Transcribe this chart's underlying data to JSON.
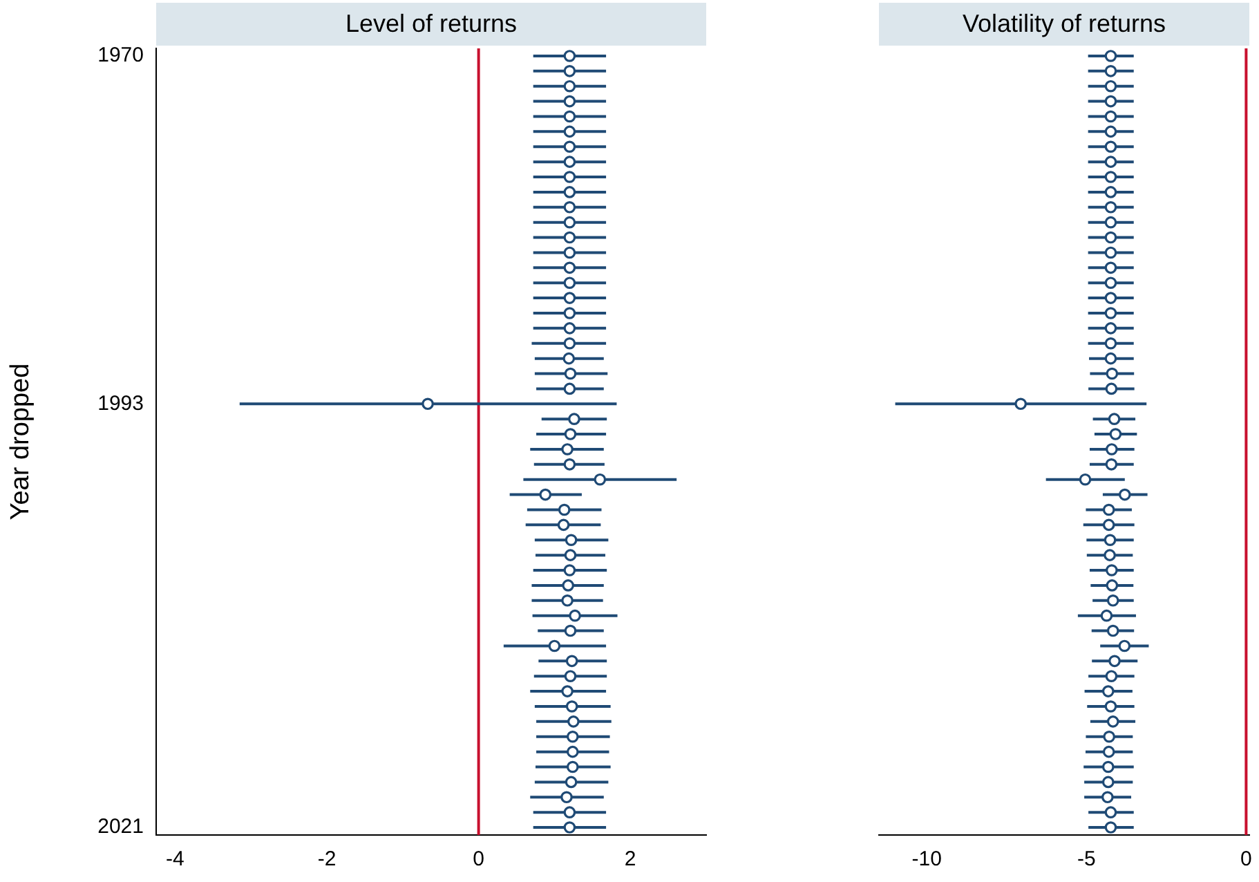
{
  "chart_data": [
    {
      "type": "scatter",
      "title": "Level of returns",
      "ylabel": "Year dropped",
      "color": "#1f4a75",
      "marker": "circle",
      "grid": false,
      "xlim": [
        -4.25,
        3
      ],
      "xticks": [
        -4,
        -2,
        0,
        2
      ],
      "ylim": [
        2021.5,
        1969.5
      ],
      "yticks": [
        1970,
        1993,
        2021
      ],
      "ref_lines": [
        {
          "axis": "x",
          "value": 0,
          "color": "#c8102e"
        }
      ],
      "x": [
        1.2,
        1.2,
        1.2,
        1.2,
        1.2,
        1.2,
        1.2,
        1.2,
        1.2,
        1.2,
        1.2,
        1.2,
        1.2,
        1.2,
        1.2,
        1.2,
        1.2,
        1.2,
        1.2,
        1.2,
        1.19,
        1.21,
        1.2,
        -0.67,
        1.26,
        1.21,
        1.17,
        1.2,
        1.6,
        0.88,
        1.13,
        1.12,
        1.22,
        1.21,
        1.2,
        1.18,
        1.17,
        1.27,
        1.21,
        1.0,
        1.23,
        1.21,
        1.17,
        1.23,
        1.25,
        1.24,
        1.24,
        1.24,
        1.22,
        1.16,
        1.2,
        1.2
      ],
      "values": [
        1970,
        1971,
        1972,
        1973,
        1974,
        1975,
        1976,
        1977,
        1978,
        1979,
        1980,
        1981,
        1982,
        1983,
        1984,
        1985,
        1986,
        1987,
        1988,
        1989,
        1990,
        1991,
        1992,
        1993,
        1994,
        1995,
        1996,
        1997,
        1998,
        1999,
        2000,
        2001,
        2002,
        2003,
        2004,
        2005,
        2006,
        2007,
        2008,
        2009,
        2010,
        2011,
        2012,
        2013,
        2014,
        2015,
        2016,
        2017,
        2018,
        2019,
        2020,
        2021
      ],
      "xerrors": [
        [
          0.72,
          1.68
        ],
        [
          0.72,
          1.68
        ],
        [
          0.72,
          1.68
        ],
        [
          0.72,
          1.68
        ],
        [
          0.72,
          1.68
        ],
        [
          0.72,
          1.68
        ],
        [
          0.72,
          1.68
        ],
        [
          0.72,
          1.68
        ],
        [
          0.72,
          1.68
        ],
        [
          0.72,
          1.68
        ],
        [
          0.72,
          1.68
        ],
        [
          0.72,
          1.68
        ],
        [
          0.72,
          1.68
        ],
        [
          0.72,
          1.68
        ],
        [
          0.72,
          1.68
        ],
        [
          0.72,
          1.68
        ],
        [
          0.72,
          1.68
        ],
        [
          0.72,
          1.68
        ],
        [
          0.72,
          1.68
        ],
        [
          0.7,
          1.68
        ],
        [
          0.74,
          1.65
        ],
        [
          0.74,
          1.7
        ],
        [
          0.76,
          1.65
        ],
        [
          -3.15,
          1.82
        ],
        [
          0.83,
          1.69
        ],
        [
          0.76,
          1.68
        ],
        [
          0.68,
          1.65
        ],
        [
          0.73,
          1.66
        ],
        [
          0.59,
          2.61
        ],
        [
          0.41,
          1.36
        ],
        [
          0.64,
          1.62
        ],
        [
          0.62,
          1.61
        ],
        [
          0.74,
          1.71
        ],
        [
          0.75,
          1.67
        ],
        [
          0.72,
          1.69
        ],
        [
          0.7,
          1.65
        ],
        [
          0.7,
          1.64
        ],
        [
          0.71,
          1.83
        ],
        [
          0.78,
          1.65
        ],
        [
          0.33,
          1.68
        ],
        [
          0.79,
          1.69
        ],
        [
          0.73,
          1.69
        ],
        [
          0.68,
          1.68
        ],
        [
          0.74,
          1.74
        ],
        [
          0.76,
          1.75
        ],
        [
          0.76,
          1.73
        ],
        [
          0.76,
          1.72
        ],
        [
          0.75,
          1.74
        ],
        [
          0.74,
          1.71
        ],
        [
          0.68,
          1.65
        ],
        [
          0.72,
          1.68
        ],
        [
          0.72,
          1.68
        ]
      ]
    },
    {
      "type": "scatter",
      "title": "Volatility of returns",
      "color": "#1f4a75",
      "marker": "circle",
      "grid": false,
      "tick_labels": "x",
      "xlim": [
        -11.5,
        0.1
      ],
      "xticks": [
        -10,
        -5,
        0
      ],
      "ylim": [
        2021.5,
        1969.5
      ],
      "yticks": [
        1970,
        1993,
        2021
      ],
      "ref_lines": [
        {
          "axis": "x",
          "value": 0,
          "color": "#c8102e"
        }
      ],
      "x": [
        -4.24,
        -4.24,
        -4.24,
        -4.24,
        -4.24,
        -4.24,
        -4.24,
        -4.24,
        -4.24,
        -4.24,
        -4.24,
        -4.24,
        -4.24,
        -4.24,
        -4.24,
        -4.24,
        -4.24,
        -4.24,
        -4.24,
        -4.24,
        -4.24,
        -4.2,
        -4.22,
        -7.06,
        -4.13,
        -4.09,
        -4.21,
        -4.22,
        -5.04,
        -3.8,
        -4.3,
        -4.3,
        -4.26,
        -4.27,
        -4.21,
        -4.2,
        -4.17,
        -4.37,
        -4.17,
        -3.81,
        -4.12,
        -4.22,
        -4.32,
        -4.24,
        -4.17,
        -4.29,
        -4.3,
        -4.32,
        -4.32,
        -4.34,
        -4.24,
        -4.24
      ],
      "values": [
        1970,
        1971,
        1972,
        1973,
        1974,
        1975,
        1976,
        1977,
        1978,
        1979,
        1980,
        1981,
        1982,
        1983,
        1984,
        1985,
        1986,
        1987,
        1988,
        1989,
        1990,
        1991,
        1992,
        1993,
        1994,
        1995,
        1996,
        1997,
        1998,
        1999,
        2000,
        2001,
        2002,
        2003,
        2004,
        2005,
        2006,
        2007,
        2008,
        2009,
        2010,
        2011,
        2012,
        2013,
        2014,
        2015,
        2016,
        2017,
        2018,
        2019,
        2020,
        2021
      ],
      "xerrors": [
        [
          -4.95,
          -3.52
        ],
        [
          -4.95,
          -3.52
        ],
        [
          -4.95,
          -3.52
        ],
        [
          -4.95,
          -3.52
        ],
        [
          -4.95,
          -3.52
        ],
        [
          -4.95,
          -3.52
        ],
        [
          -4.95,
          -3.52
        ],
        [
          -4.95,
          -3.52
        ],
        [
          -4.95,
          -3.52
        ],
        [
          -4.95,
          -3.52
        ],
        [
          -4.95,
          -3.52
        ],
        [
          -4.95,
          -3.52
        ],
        [
          -4.95,
          -3.52
        ],
        [
          -4.95,
          -3.52
        ],
        [
          -4.95,
          -3.52
        ],
        [
          -4.95,
          -3.52
        ],
        [
          -4.95,
          -3.52
        ],
        [
          -4.95,
          -3.52
        ],
        [
          -4.95,
          -3.52
        ],
        [
          -4.95,
          -3.52
        ],
        [
          -4.92,
          -3.52
        ],
        [
          -4.89,
          -3.51
        ],
        [
          -4.94,
          -3.5
        ],
        [
          -10.99,
          -3.12
        ],
        [
          -4.8,
          -3.47
        ],
        [
          -4.75,
          -3.42
        ],
        [
          -4.9,
          -3.5
        ],
        [
          -4.9,
          -3.52
        ],
        [
          -6.27,
          -3.8
        ],
        [
          -4.49,
          -3.09
        ],
        [
          -5.02,
          -3.58
        ],
        [
          -5.1,
          -3.5
        ],
        [
          -5.0,
          -3.52
        ],
        [
          -4.99,
          -3.55
        ],
        [
          -4.9,
          -3.52
        ],
        [
          -4.87,
          -3.53
        ],
        [
          -4.81,
          -3.52
        ],
        [
          -5.27,
          -3.45
        ],
        [
          -4.84,
          -3.51
        ],
        [
          -4.57,
          -3.05
        ],
        [
          -4.83,
          -3.4
        ],
        [
          -4.94,
          -3.5
        ],
        [
          -5.06,
          -3.56
        ],
        [
          -4.98,
          -3.5
        ],
        [
          -4.88,
          -3.47
        ],
        [
          -5.02,
          -3.55
        ],
        [
          -5.03,
          -3.55
        ],
        [
          -5.09,
          -3.52
        ],
        [
          -5.07,
          -3.55
        ],
        [
          -5.07,
          -3.6
        ],
        [
          -4.94,
          -3.52
        ],
        [
          -4.94,
          -3.52
        ]
      ]
    }
  ]
}
